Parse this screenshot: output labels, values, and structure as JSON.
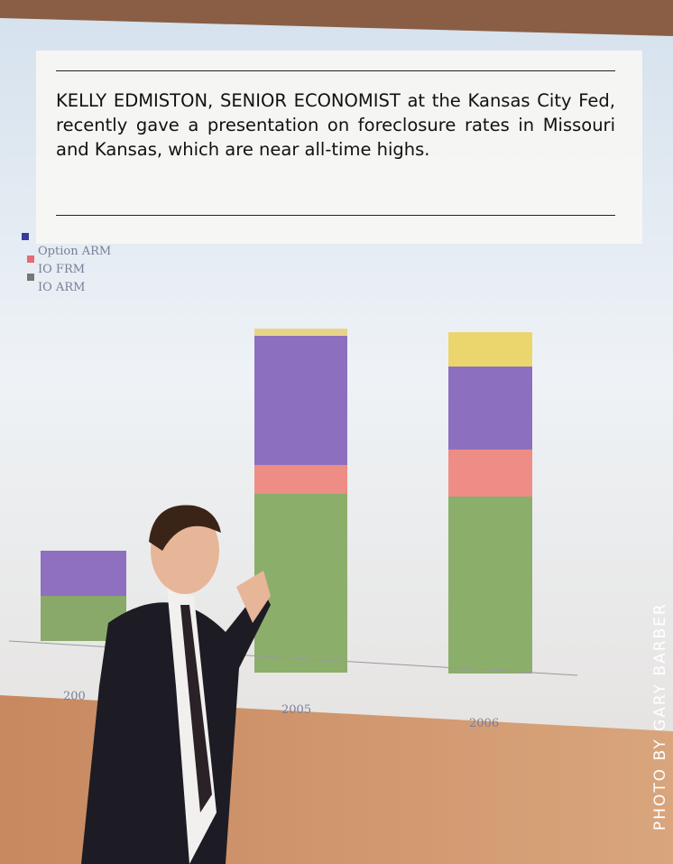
{
  "caption": {
    "text": "KELLY EDMISTON, SENIOR ECONOMIST at the Kansas City Fed, recently gave a presentation on foreclosure rates in Missouri and Kansas, which are near all-time highs."
  },
  "slide": {
    "legend": [
      "Option ARM",
      "IO FRM",
      "IO ARM"
    ],
    "years": [
      "200",
      "2005",
      "2006"
    ]
  },
  "photo": {
    "credit": "PHOTO BY GARY BARBER"
  }
}
